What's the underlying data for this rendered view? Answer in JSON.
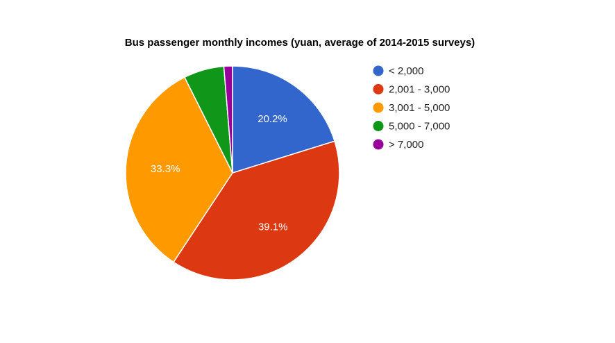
{
  "chart_data": {
    "type": "pie",
    "title": "Bus passenger monthly incomes (yuan, average of 2014-2015 surveys)",
    "legend_position": "right",
    "slices": [
      {
        "label": "< 2,000",
        "value": 20.2,
        "value_label": "20.2%",
        "color": "#3366cc"
      },
      {
        "label": "2,001 - 3,000",
        "value": 39.1,
        "value_label": "39.1%",
        "color": "#dc3912"
      },
      {
        "label": "3,001 - 5,000",
        "value": 33.3,
        "value_label": "33.3%",
        "color": "#ff9900"
      },
      {
        "label": "5,000 - 7,000",
        "value": 6.1,
        "value_label": "",
        "color": "#109618"
      },
      {
        "label": "> 7,000",
        "value": 1.3,
        "value_label": "",
        "color": "#990099"
      }
    ]
  }
}
